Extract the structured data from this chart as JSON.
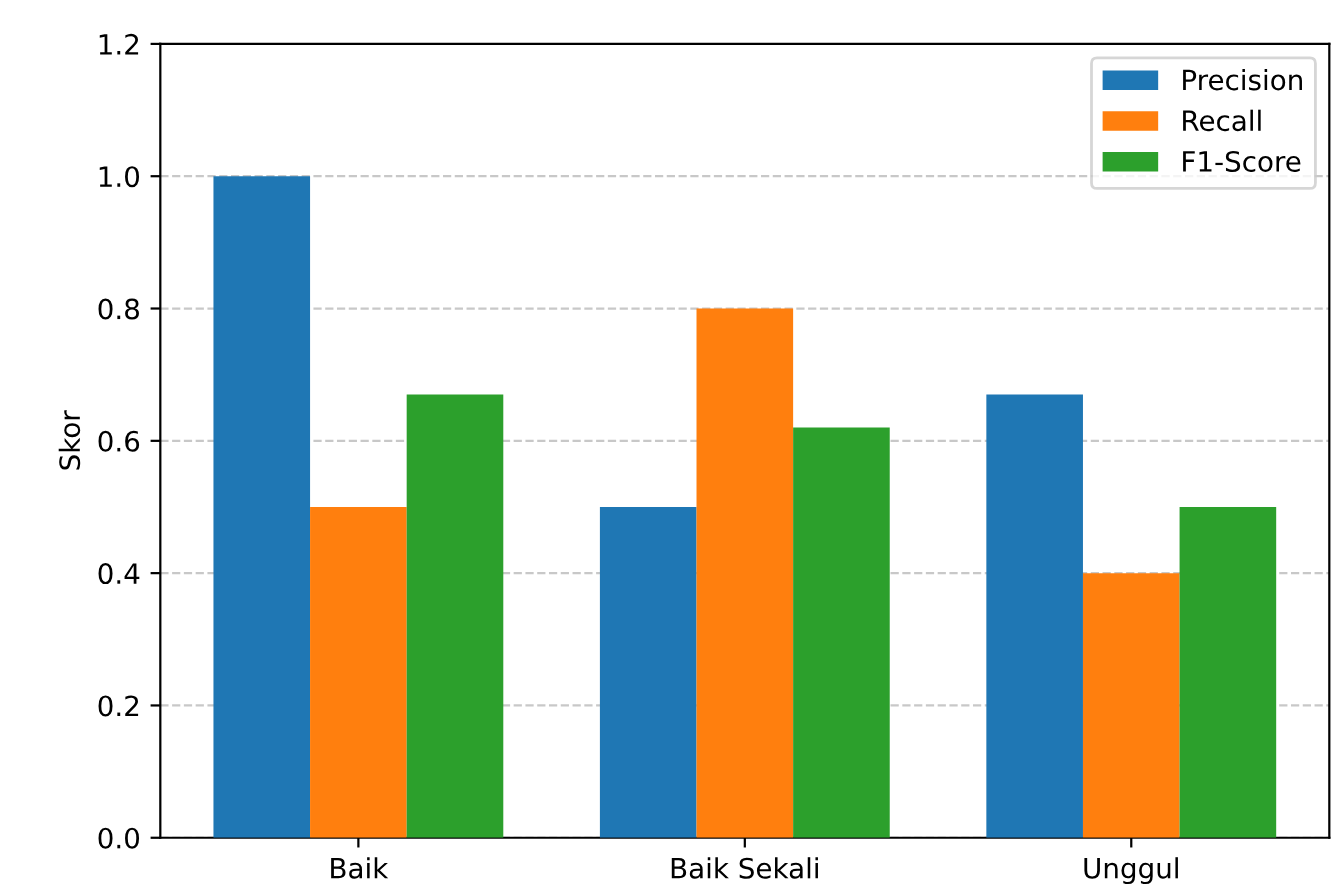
{
  "chart_data": {
    "type": "bar",
    "ylabel": "Skor",
    "categories": [
      "Baik",
      "Baik Sekali",
      "Unggul"
    ],
    "series": [
      {
        "name": "Precision",
        "color": "#1f77b4",
        "values": [
          1.0,
          0.5,
          0.67
        ]
      },
      {
        "name": "Recall",
        "color": "#ff7f0e",
        "values": [
          0.5,
          0.8,
          0.4
        ]
      },
      {
        "name": "F1-Score",
        "color": "#2ca02c",
        "values": [
          0.67,
          0.62,
          0.5
        ]
      }
    ],
    "ylim": [
      0,
      1.2
    ],
    "yticks": [
      {
        "value": 0,
        "label": "0.0"
      },
      0.2,
      0.4,
      0.6,
      0.8,
      {
        "value": 1,
        "label": "1.0"
      },
      1.2
    ],
    "grid": "y",
    "legend": "top right"
  }
}
